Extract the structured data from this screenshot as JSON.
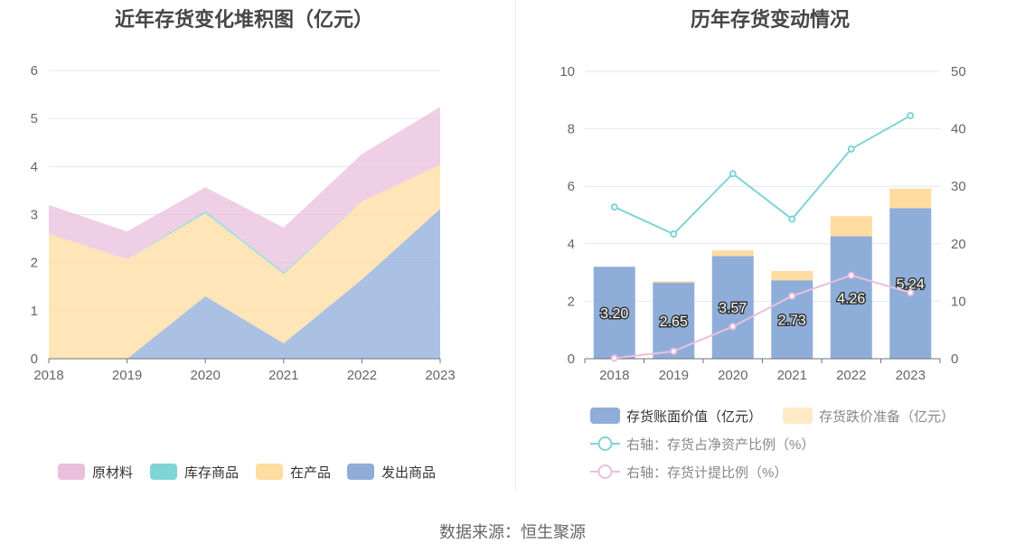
{
  "charts": {
    "left_title": "近年存货变化堆积图（亿元）",
    "right_title": "历年存货变动情况"
  },
  "source": "数据来源：恒生聚源",
  "chart_data": [
    {
      "type": "area",
      "stacked": true,
      "title": "近年存货变化堆积图（亿元）",
      "categories": [
        "2018",
        "2019",
        "2020",
        "2021",
        "2022",
        "2023"
      ],
      "ylim": [
        0,
        6
      ],
      "yticks": [
        "0",
        "1",
        "2",
        "3",
        "4",
        "5",
        "6"
      ],
      "grid": true,
      "legend_position": "bottom",
      "series": [
        {
          "name": "发出商品",
          "color": "#8facd9",
          "values": [
            0.0,
            0.0,
            1.3,
            0.32,
            1.65,
            3.12
          ]
        },
        {
          "name": "在产品",
          "color": "#ffdc9f",
          "values": [
            2.6,
            2.07,
            1.73,
            1.44,
            1.62,
            0.92
          ]
        },
        {
          "name": "库存商品",
          "color": "#7fd4d6",
          "values": [
            0.0,
            0.0,
            0.05,
            0.04,
            0.0,
            0.0
          ]
        },
        {
          "name": "原材料",
          "color": "#eabfdc",
          "values": [
            0.6,
            0.58,
            0.49,
            0.93,
            0.99,
            1.2
          ]
        }
      ],
      "legend_order": [
        "原材料",
        "库存商品",
        "在产品",
        "发出商品"
      ]
    },
    {
      "type": "bar",
      "title": "历年存货变动情况",
      "categories": [
        "2018",
        "2019",
        "2020",
        "2021",
        "2022",
        "2023"
      ],
      "ylim": [
        0,
        10
      ],
      "yticks": [
        "0",
        "2",
        "4",
        "6",
        "8",
        "10"
      ],
      "y2lim": [
        0,
        50
      ],
      "y2ticks": [
        "0",
        "10",
        "20",
        "30",
        "40",
        "50"
      ],
      "grid": true,
      "legend_position": "bottom",
      "series": [
        {
          "name": "存货账面价值（亿元）",
          "kind": "bar",
          "stack": "a",
          "color": "#8eaed9",
          "values": [
            3.2,
            2.65,
            3.57,
            2.73,
            4.26,
            5.24
          ],
          "labels": [
            "3.20",
            "2.65",
            "3.57",
            "2.73",
            "4.26",
            "5.24"
          ]
        },
        {
          "name": "存货跌价准备（亿元）",
          "kind": "bar",
          "stack": "a",
          "color": "#ffdc9f",
          "values": [
            0.0,
            0.05,
            0.2,
            0.32,
            0.7,
            0.68
          ]
        },
        {
          "name": "右轴：存货占净资产比例（%）",
          "kind": "line",
          "axis": "right",
          "color": "#7fd4d6",
          "values": [
            26.4,
            21.7,
            32.2,
            24.3,
            36.5,
            42.3
          ]
        },
        {
          "name": "右轴：存货计提比例（%）",
          "kind": "line",
          "axis": "right",
          "color": "#eabfdc",
          "values": [
            0.1,
            1.3,
            5.6,
            10.9,
            14.5,
            11.5
          ]
        }
      ]
    }
  ]
}
